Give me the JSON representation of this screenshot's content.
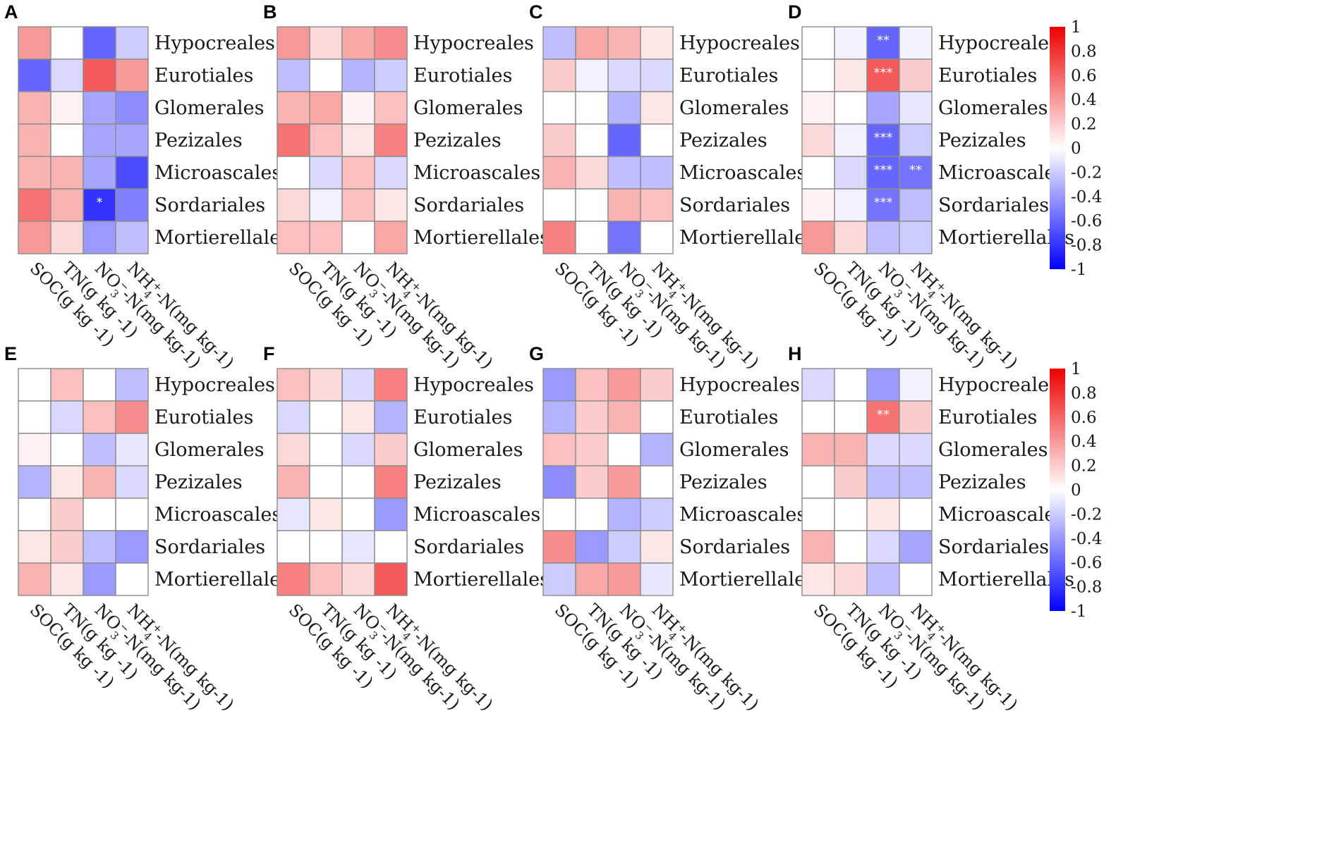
{
  "chart_data": {
    "type": "heatmap",
    "rows": [
      "Hypocreales",
      "Eurotiales",
      "Glomerales",
      "Pezizales",
      "Microascales",
      "Sordariales",
      "Mortierellales"
    ],
    "columns": [
      {
        "base": "SOC(g kg -1)"
      },
      {
        "base": "TN(g kg -1)"
      },
      {
        "base": "NO",
        "sub": "3",
        "sup": "−",
        "rest": "-N(mg kg-1)"
      },
      {
        "base": "NH",
        "sub": "4",
        "sup": "+",
        "rest": "-N(mg kg-1)"
      }
    ],
    "colorbar": {
      "range": [
        -1,
        1
      ],
      "ticks": [
        "1",
        "0.8",
        "0.6",
        "0.4",
        "0.2",
        "0",
        "-0.2",
        "-0.4",
        "-0.6",
        "-0.8",
        "-1"
      ],
      "colors": {
        "negative": "#0000ff",
        "zero": "#ffffff",
        "positive": "#ee0000"
      }
    },
    "panels": [
      {
        "label": "A",
        "values": [
          [
            0.4,
            0.0,
            -0.6,
            -0.2
          ],
          [
            -0.6,
            -0.15,
            0.65,
            0.4
          ],
          [
            0.3,
            0.05,
            -0.35,
            -0.45
          ],
          [
            0.3,
            0.0,
            -0.35,
            -0.35
          ],
          [
            0.3,
            0.3,
            -0.35,
            -0.7
          ],
          [
            0.55,
            0.3,
            -0.8,
            -0.5
          ],
          [
            0.4,
            0.15,
            -0.4,
            -0.25
          ]
        ],
        "stars": [
          [
            null,
            null,
            null,
            null
          ],
          [
            null,
            null,
            null,
            null
          ],
          [
            null,
            null,
            null,
            null
          ],
          [
            null,
            null,
            null,
            null
          ],
          [
            null,
            null,
            null,
            null
          ],
          [
            null,
            null,
            "*",
            null
          ],
          [
            null,
            null,
            null,
            null
          ]
        ]
      },
      {
        "label": "B",
        "values": [
          [
            0.4,
            0.15,
            0.35,
            0.45
          ],
          [
            -0.25,
            0.0,
            -0.3,
            -0.2
          ],
          [
            0.3,
            0.35,
            0.05,
            0.25
          ],
          [
            0.55,
            0.25,
            0.1,
            0.5
          ],
          [
            0.0,
            -0.15,
            0.25,
            -0.15
          ],
          [
            0.15,
            -0.05,
            0.25,
            0.1
          ],
          [
            0.25,
            0.25,
            0.0,
            0.35
          ]
        ],
        "stars": [
          [
            null,
            null,
            null,
            null
          ],
          [
            null,
            null,
            null,
            null
          ],
          [
            null,
            null,
            null,
            null
          ],
          [
            null,
            null,
            null,
            null
          ],
          [
            null,
            null,
            null,
            null
          ],
          [
            null,
            null,
            null,
            null
          ],
          [
            null,
            null,
            null,
            null
          ]
        ]
      },
      {
        "label": "C",
        "values": [
          [
            -0.25,
            0.35,
            0.3,
            0.1
          ],
          [
            0.2,
            -0.05,
            -0.15,
            -0.15
          ],
          [
            0.0,
            0.0,
            -0.3,
            0.1
          ],
          [
            0.2,
            0.0,
            -0.6,
            0.0
          ],
          [
            0.3,
            0.15,
            -0.25,
            -0.25
          ],
          [
            0.0,
            0.0,
            0.3,
            0.25
          ],
          [
            0.5,
            0.0,
            -0.55,
            0.0
          ]
        ],
        "stars": [
          [
            null,
            null,
            null,
            null
          ],
          [
            null,
            null,
            null,
            null
          ],
          [
            null,
            null,
            null,
            null
          ],
          [
            null,
            null,
            null,
            null
          ],
          [
            null,
            null,
            null,
            null
          ],
          [
            null,
            null,
            null,
            null
          ],
          [
            null,
            null,
            null,
            null
          ]
        ]
      },
      {
        "label": "D",
        "values": [
          [
            0.0,
            -0.05,
            -0.6,
            -0.05
          ],
          [
            0.0,
            0.1,
            0.65,
            0.2
          ],
          [
            0.05,
            0.0,
            -0.35,
            -0.1
          ],
          [
            0.15,
            -0.05,
            -0.6,
            -0.2
          ],
          [
            0.0,
            -0.15,
            -0.6,
            -0.55
          ],
          [
            0.05,
            -0.05,
            -0.55,
            -0.25
          ],
          [
            0.4,
            0.15,
            -0.25,
            -0.2
          ]
        ],
        "stars": [
          [
            null,
            null,
            "**",
            null
          ],
          [
            null,
            null,
            "***",
            null
          ],
          [
            null,
            null,
            null,
            null
          ],
          [
            null,
            null,
            "***",
            null
          ],
          [
            null,
            null,
            "***",
            "**"
          ],
          [
            null,
            null,
            "***",
            null
          ],
          [
            null,
            null,
            null,
            null
          ]
        ]
      },
      {
        "label": "E",
        "values": [
          [
            0.0,
            0.25,
            0.0,
            -0.25
          ],
          [
            0.0,
            -0.15,
            0.25,
            0.45
          ],
          [
            0.05,
            0.0,
            -0.25,
            -0.1
          ],
          [
            -0.3,
            0.1,
            0.3,
            -0.15
          ],
          [
            0.0,
            0.2,
            0.0,
            0.0
          ],
          [
            0.1,
            0.2,
            -0.25,
            -0.4
          ],
          [
            0.3,
            0.1,
            -0.4,
            0.0
          ]
        ],
        "stars": [
          [
            null,
            null,
            null,
            null
          ],
          [
            null,
            null,
            null,
            null
          ],
          [
            null,
            null,
            null,
            null
          ],
          [
            null,
            null,
            null,
            null
          ],
          [
            null,
            null,
            null,
            null
          ],
          [
            null,
            null,
            null,
            null
          ],
          [
            null,
            null,
            null,
            null
          ]
        ]
      },
      {
        "label": "F",
        "values": [
          [
            0.25,
            0.15,
            -0.15,
            0.5
          ],
          [
            -0.15,
            0.0,
            0.1,
            -0.3
          ],
          [
            0.15,
            0.0,
            -0.15,
            0.2
          ],
          [
            0.3,
            0.0,
            0.0,
            0.5
          ],
          [
            -0.1,
            0.1,
            0.0,
            -0.4
          ],
          [
            0.0,
            0.0,
            -0.1,
            0.0
          ],
          [
            0.5,
            0.25,
            0.15,
            0.65
          ]
        ],
        "stars": [
          [
            null,
            null,
            null,
            null
          ],
          [
            null,
            null,
            null,
            null
          ],
          [
            null,
            null,
            null,
            null
          ],
          [
            null,
            null,
            null,
            null
          ],
          [
            null,
            null,
            null,
            null
          ],
          [
            null,
            null,
            null,
            null
          ],
          [
            null,
            null,
            null,
            null
          ]
        ]
      },
      {
        "label": "G",
        "values": [
          [
            -0.4,
            0.25,
            0.4,
            0.2
          ],
          [
            -0.3,
            0.2,
            0.3,
            0.0
          ],
          [
            0.25,
            0.2,
            0.0,
            -0.3
          ],
          [
            -0.45,
            0.2,
            0.4,
            0.0
          ],
          [
            0.0,
            0.0,
            -0.3,
            -0.2
          ],
          [
            0.45,
            -0.4,
            -0.2,
            0.1
          ],
          [
            -0.2,
            0.35,
            0.4,
            -0.1
          ]
        ],
        "stars": [
          [
            null,
            null,
            null,
            null
          ],
          [
            null,
            null,
            null,
            null
          ],
          [
            null,
            null,
            null,
            null
          ],
          [
            null,
            null,
            null,
            null
          ],
          [
            null,
            null,
            null,
            null
          ],
          [
            null,
            null,
            null,
            null
          ],
          [
            null,
            null,
            null,
            null
          ]
        ]
      },
      {
        "label": "H",
        "values": [
          [
            -0.15,
            0.0,
            -0.4,
            -0.05
          ],
          [
            0.0,
            0.0,
            0.55,
            0.2
          ],
          [
            0.3,
            0.3,
            -0.15,
            -0.15
          ],
          [
            0.0,
            0.2,
            -0.25,
            -0.25
          ],
          [
            0.0,
            0.0,
            0.1,
            0.0
          ],
          [
            0.3,
            0.0,
            -0.15,
            -0.35
          ],
          [
            0.1,
            0.15,
            -0.25,
            0.0
          ]
        ],
        "stars": [
          [
            null,
            null,
            null,
            null
          ],
          [
            null,
            null,
            "**",
            null
          ],
          [
            null,
            null,
            null,
            null
          ],
          [
            null,
            null,
            null,
            null
          ],
          [
            null,
            null,
            null,
            null
          ],
          [
            null,
            null,
            null,
            null
          ],
          [
            null,
            null,
            null,
            null
          ]
        ]
      }
    ]
  }
}
